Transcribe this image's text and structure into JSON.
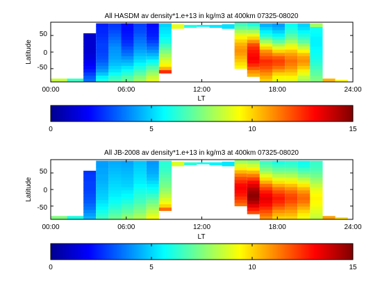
{
  "chart_data": [
    {
      "type": "heatmap",
      "title": "All HASDM av density*1.e+13 in kg/m3 at 400km 07325-08020",
      "xlabel": "LT",
      "ylabel": "Latitude",
      "xlim": [
        0,
        24
      ],
      "ylim": [
        -90,
        90
      ],
      "x_ticks": [
        "00:00",
        "06:00",
        "12:00",
        "18:00",
        "24:00"
      ],
      "y_ticks": [
        "50",
        "0",
        "-50"
      ],
      "colorbar": {
        "range": [
          0,
          15
        ],
        "ticks": [
          "0",
          "5",
          "10",
          "15"
        ],
        "colormap": "jet"
      },
      "lat_bins": [
        -85,
        -75,
        -65,
        -55,
        -45,
        -35,
        -25,
        -15,
        -5,
        5,
        15,
        25,
        35,
        45,
        55,
        65,
        75,
        85
      ],
      "strips": [
        {
          "lt_start": 0.0,
          "lt_end": 1.3,
          "lat_min": -90,
          "lat_max": -80,
          "values": [
            8.5
          ]
        },
        {
          "lt_start": 1.3,
          "lt_end": 2.6,
          "lat_min": -90,
          "lat_max": -80,
          "values": [
            6.5
          ]
        },
        {
          "lt_start": 2.6,
          "lt_end": 3.6,
          "lat_min": -90,
          "lat_max": 56,
          "values": [
            3.5,
            3.2,
            2.8,
            2.3,
            2.0,
            1.8,
            1.6,
            1.4,
            1.3,
            1.2,
            1.2,
            1.2,
            1.2,
            1.1,
            1.1
          ]
        },
        {
          "lt_start": 3.6,
          "lt_end": 4.6,
          "lat_min": -90,
          "lat_max": 86,
          "values": [
            6.0,
            5.5,
            4.8,
            4.2,
            3.8,
            3.5,
            3.2,
            3.0,
            2.9,
            2.8,
            2.8,
            2.8,
            2.7,
            2.6,
            2.5,
            2.4,
            2.4,
            2.3
          ]
        },
        {
          "lt_start": 4.6,
          "lt_end": 5.6,
          "lat_min": -90,
          "lat_max": 86,
          "values": [
            6.8,
            6.3,
            5.8,
            5.3,
            5.0,
            4.7,
            4.5,
            4.3,
            4.2,
            4.1,
            4.0,
            3.8,
            3.6,
            3.4,
            3.2,
            3.0,
            2.8,
            2.7
          ]
        },
        {
          "lt_start": 5.6,
          "lt_end": 6.6,
          "lat_min": -90,
          "lat_max": 86,
          "values": [
            7.2,
            6.8,
            6.3,
            5.8,
            5.3,
            4.8,
            4.4,
            4.0,
            3.6,
            3.3,
            3.0,
            2.7,
            2.5,
            2.3,
            2.2,
            2.1,
            2.0,
            2.0
          ]
        },
        {
          "lt_start": 6.6,
          "lt_end": 7.6,
          "lat_min": -90,
          "lat_max": 86,
          "values": [
            8.0,
            7.5,
            7.0,
            6.5,
            6.0,
            5.6,
            5.2,
            4.9,
            4.6,
            4.3,
            4.0,
            3.8,
            3.6,
            3.4,
            3.2,
            3.0,
            2.9,
            2.8
          ]
        },
        {
          "lt_start": 7.6,
          "lt_end": 8.6,
          "lat_min": -90,
          "lat_max": 86,
          "values": [
            9.0,
            8.5,
            8.0,
            7.4,
            6.8,
            6.2,
            5.6,
            5.0,
            4.5,
            4.0,
            3.6,
            3.2,
            2.8,
            2.5,
            2.3,
            2.2,
            2.1,
            2.0
          ]
        },
        {
          "lt_start": 8.6,
          "lt_end": 9.6,
          "lat_min": -64,
          "lat_max": 86,
          "values": [
            12.5,
            10.5,
            9.5,
            9.0,
            8.5,
            8.0,
            7.5,
            7.0,
            6.5,
            6.0,
            5.8,
            5.5,
            5.3,
            5.2,
            5.0
          ]
        },
        {
          "lt_start": 9.6,
          "lt_end": 10.6,
          "lat_min": 70,
          "lat_max": 84,
          "values": [
            9.0
          ]
        },
        {
          "lt_start": 10.6,
          "lt_end": 11.6,
          "lat_min": 73,
          "lat_max": 82,
          "values": [
            6.0
          ]
        },
        {
          "lt_start": 11.6,
          "lt_end": 12.6,
          "lat_min": 76,
          "lat_max": 82,
          "values": [
            5.5
          ]
        },
        {
          "lt_start": 12.6,
          "lt_end": 13.6,
          "lat_min": 73,
          "lat_max": 82,
          "values": [
            5.3
          ]
        },
        {
          "lt_start": 13.6,
          "lt_end": 14.6,
          "lat_min": 70,
          "lat_max": 84,
          "values": [
            5.2
          ]
        },
        {
          "lt_start": 14.6,
          "lt_end": 15.6,
          "lat_min": -50,
          "lat_max": 88,
          "values": [
            9.5,
            9.8,
            10.2,
            10.5,
            10.8,
            11.0,
            10.8,
            10.5,
            10.0,
            9.5,
            8.8,
            8.0,
            7.2,
            6.5
          ]
        },
        {
          "lt_start": 15.6,
          "lt_end": 16.6,
          "lat_min": -74,
          "lat_max": 88,
          "values": [
            10.5,
            11.0,
            11.8,
            12.5,
            13.0,
            13.2,
            13.0,
            12.8,
            12.5,
            12.0,
            11.0,
            10.0,
            9.0,
            8.0,
            7.0,
            6.0
          ]
        },
        {
          "lt_start": 16.6,
          "lt_end": 17.6,
          "lat_min": -90,
          "lat_max": 86,
          "values": [
            10.0,
            10.5,
            11.0,
            11.5,
            12.0,
            12.3,
            12.5,
            12.0,
            11.5,
            11.0,
            10.0,
            9.0,
            8.0,
            7.0,
            6.0,
            5.5,
            5.0,
            4.5
          ]
        },
        {
          "lt_start": 17.6,
          "lt_end": 18.6,
          "lat_min": -90,
          "lat_max": 86,
          "values": [
            9.0,
            9.5,
            10.0,
            10.8,
            11.5,
            12.0,
            12.2,
            11.8,
            11.0,
            10.0,
            9.0,
            8.0,
            7.0,
            6.2,
            5.5,
            5.0,
            4.5,
            4.2
          ]
        },
        {
          "lt_start": 18.6,
          "lt_end": 19.6,
          "lat_min": -90,
          "lat_max": 86,
          "values": [
            9.0,
            9.5,
            10.0,
            10.5,
            11.0,
            11.3,
            11.5,
            11.2,
            10.8,
            10.2,
            9.5,
            8.8,
            8.0,
            7.3,
            6.8,
            6.3,
            6.0,
            5.8
          ]
        },
        {
          "lt_start": 19.6,
          "lt_end": 20.6,
          "lat_min": -90,
          "lat_max": 86,
          "values": [
            8.0,
            8.5,
            9.0,
            9.6,
            10.2,
            10.7,
            11.0,
            10.8,
            10.3,
            9.5,
            8.6,
            7.8,
            7.0,
            6.5,
            6.0,
            5.6,
            5.2,
            5.0
          ]
        },
        {
          "lt_start": 20.6,
          "lt_end": 21.6,
          "lat_min": -90,
          "lat_max": 86,
          "values": [
            7.5,
            7.3,
            7.0,
            6.8,
            6.5,
            6.3,
            6.1,
            5.9,
            5.8,
            5.7,
            5.6,
            5.5,
            5.5,
            5.5,
            5.6,
            5.7,
            5.8,
            8.0
          ]
        },
        {
          "lt_start": 21.6,
          "lt_end": 22.6,
          "lat_min": -90,
          "lat_max": -80,
          "values": [
            10.5
          ]
        },
        {
          "lt_start": 22.6,
          "lt_end": 23.6,
          "lat_min": -90,
          "lat_max": -84,
          "values": [
            9.5
          ]
        }
      ]
    },
    {
      "type": "heatmap",
      "title": "All JB-2008 av density*1.e+13 in kg/m3 at 400km 07325-08020",
      "xlabel": "LT",
      "ylabel": "Latitude",
      "xlim": [
        0,
        24
      ],
      "ylim": [
        -90,
        90
      ],
      "x_ticks": [
        "00:00",
        "06:00",
        "12:00",
        "18:00",
        "24:00"
      ],
      "y_ticks": [
        "50",
        "0",
        "-50"
      ],
      "colorbar": {
        "range": [
          0,
          15
        ],
        "ticks": [
          "0",
          "5",
          "10",
          "15"
        ],
        "colormap": "jet"
      },
      "lat_bins": [
        -85,
        -75,
        -65,
        -55,
        -45,
        -35,
        -25,
        -15,
        -5,
        5,
        15,
        25,
        35,
        45,
        55,
        65,
        75,
        85
      ],
      "strips": [
        {
          "lt_start": 0.0,
          "lt_end": 1.3,
          "lat_min": -90,
          "lat_max": -80,
          "values": [
            7.5
          ]
        },
        {
          "lt_start": 1.3,
          "lt_end": 2.6,
          "lat_min": -90,
          "lat_max": -80,
          "values": [
            6.0
          ]
        },
        {
          "lt_start": 2.6,
          "lt_end": 3.6,
          "lat_min": -90,
          "lat_max": 56,
          "values": [
            4.5,
            4.2,
            3.9,
            3.6,
            3.4,
            3.2,
            3.1,
            3.0,
            2.9,
            2.8,
            2.8,
            2.8,
            2.7,
            2.7,
            2.6
          ]
        },
        {
          "lt_start": 3.6,
          "lt_end": 4.6,
          "lat_min": -90,
          "lat_max": 86,
          "values": [
            6.5,
            6.2,
            5.9,
            5.6,
            5.4,
            5.2,
            5.0,
            4.9,
            4.8,
            4.7,
            4.6,
            4.5,
            4.4,
            4.4,
            4.3,
            4.3,
            4.2,
            4.2
          ]
        },
        {
          "lt_start": 4.6,
          "lt_end": 5.6,
          "lat_min": -90,
          "lat_max": 86,
          "values": [
            7.2,
            6.9,
            6.6,
            6.3,
            6.0,
            5.8,
            5.6,
            5.4,
            5.3,
            5.2,
            5.1,
            5.0,
            4.9,
            4.8,
            4.7,
            4.6,
            4.5,
            4.4
          ]
        },
        {
          "lt_start": 5.6,
          "lt_end": 6.6,
          "lat_min": -90,
          "lat_max": 86,
          "values": [
            7.8,
            7.4,
            7.0,
            6.7,
            6.4,
            6.1,
            5.8,
            5.6,
            5.4,
            5.2,
            5.0,
            4.9,
            4.8,
            4.7,
            4.6,
            4.5,
            4.4,
            4.3
          ]
        },
        {
          "lt_start": 6.6,
          "lt_end": 7.6,
          "lat_min": -90,
          "lat_max": 86,
          "values": [
            8.2,
            7.9,
            7.5,
            7.2,
            6.9,
            6.6,
            6.4,
            6.2,
            6.0,
            5.8,
            5.6,
            5.4,
            5.3,
            5.2,
            5.1,
            5.0,
            4.9,
            4.8
          ]
        },
        {
          "lt_start": 7.6,
          "lt_end": 8.6,
          "lat_min": -90,
          "lat_max": 86,
          "values": [
            9.2,
            8.8,
            8.4,
            8.0,
            7.6,
            7.2,
            6.8,
            6.4,
            6.0,
            5.7,
            5.4,
            5.1,
            4.8,
            4.6,
            4.4,
            4.3,
            4.2,
            4.1
          ]
        },
        {
          "lt_start": 8.6,
          "lt_end": 9.6,
          "lat_min": -64,
          "lat_max": 86,
          "values": [
            11.5,
            10.0,
            9.2,
            8.8,
            8.4,
            8.0,
            7.7,
            7.4,
            7.2,
            7.0,
            6.8,
            6.6,
            6.4,
            6.3,
            6.2
          ]
        },
        {
          "lt_start": 9.6,
          "lt_end": 10.6,
          "lat_min": 70,
          "lat_max": 84,
          "values": [
            8.8
          ]
        },
        {
          "lt_start": 10.6,
          "lt_end": 11.6,
          "lat_min": 73,
          "lat_max": 82,
          "values": [
            6.2
          ]
        },
        {
          "lt_start": 11.6,
          "lt_end": 12.6,
          "lat_min": 76,
          "lat_max": 82,
          "values": [
            5.8
          ]
        },
        {
          "lt_start": 12.6,
          "lt_end": 13.6,
          "lat_min": 73,
          "lat_max": 82,
          "values": [
            5.5
          ]
        },
        {
          "lt_start": 13.6,
          "lt_end": 14.6,
          "lat_min": 70,
          "lat_max": 84,
          "values": [
            5.3
          ]
        },
        {
          "lt_start": 14.6,
          "lt_end": 15.6,
          "lat_min": -50,
          "lat_max": 88,
          "values": [
            11.5,
            12.0,
            12.4,
            12.8,
            13.0,
            13.2,
            13.0,
            12.5,
            12.0,
            11.3,
            10.5,
            9.6,
            8.8,
            8.0
          ]
        },
        {
          "lt_start": 15.6,
          "lt_end": 16.6,
          "lat_min": -74,
          "lat_max": 88,
          "values": [
            12.0,
            12.8,
            13.5,
            14.2,
            14.6,
            14.8,
            14.6,
            14.2,
            13.6,
            13.0,
            12.2,
            11.3,
            10.4,
            9.5,
            8.6,
            7.8
          ]
        },
        {
          "lt_start": 16.6,
          "lt_end": 17.6,
          "lat_min": -90,
          "lat_max": 86,
          "values": [
            11.0,
            11.5,
            12.0,
            12.5,
            13.0,
            13.3,
            13.5,
            13.2,
            12.8,
            12.2,
            11.5,
            10.6,
            9.8,
            9.0,
            8.2,
            7.5,
            7.0,
            6.5
          ]
        },
        {
          "lt_start": 17.6,
          "lt_end": 18.6,
          "lat_min": -90,
          "lat_max": 86,
          "values": [
            10.0,
            10.5,
            11.0,
            11.6,
            12.2,
            12.6,
            12.8,
            12.5,
            12.0,
            11.4,
            10.6,
            9.8,
            9.0,
            8.3,
            7.6,
            7.0,
            6.5,
            6.0
          ]
        },
        {
          "lt_start": 18.6,
          "lt_end": 19.6,
          "lat_min": -90,
          "lat_max": 86,
          "values": [
            10.0,
            10.4,
            10.8,
            11.2,
            11.6,
            12.0,
            12.2,
            12.0,
            11.6,
            11.0,
            10.3,
            9.6,
            8.9,
            8.2,
            7.6,
            7.0,
            6.5,
            6.2
          ]
        },
        {
          "lt_start": 19.6,
          "lt_end": 20.6,
          "lat_min": -90,
          "lat_max": 86,
          "values": [
            9.2,
            9.6,
            10.0,
            10.5,
            11.0,
            11.4,
            11.6,
            11.4,
            11.0,
            10.4,
            9.7,
            9.0,
            8.3,
            7.6,
            7.0,
            6.5,
            6.0,
            5.8
          ]
        },
        {
          "lt_start": 20.6,
          "lt_end": 21.6,
          "lat_min": -90,
          "lat_max": 86,
          "values": [
            8.5,
            8.7,
            8.9,
            9.1,
            9.3,
            9.4,
            9.5,
            9.4,
            9.2,
            8.9,
            8.5,
            8.1,
            7.7,
            7.3,
            7.0,
            6.7,
            6.5,
            6.4
          ]
        },
        {
          "lt_start": 21.6,
          "lt_end": 22.6,
          "lat_min": -90,
          "lat_max": -80,
          "values": [
            10.8
          ]
        },
        {
          "lt_start": 22.6,
          "lt_end": 23.6,
          "lat_min": -90,
          "lat_max": -84,
          "values": [
            9.8
          ]
        }
      ]
    }
  ]
}
